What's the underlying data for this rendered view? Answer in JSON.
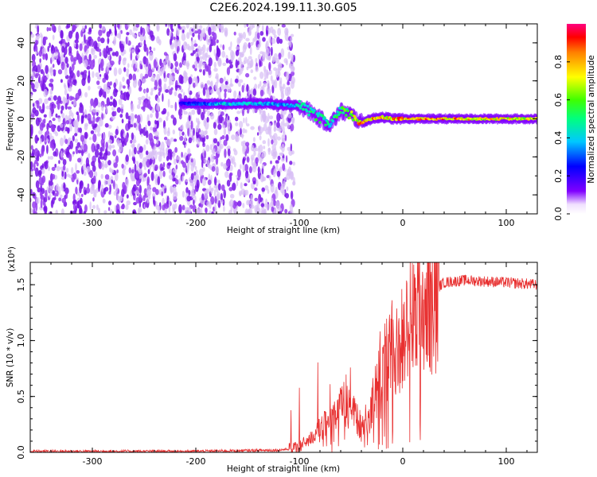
{
  "figure": {
    "title": "C2E6.2024.199.11.30.G05"
  },
  "chart_data": [
    {
      "type": "heatmap",
      "xlabel": "Height of straight line (km)",
      "ylabel": "Frequency (Hz)",
      "xlim": [
        -360,
        130
      ],
      "ylim": [
        -50,
        50
      ],
      "xticks": [
        "-300",
        "-200",
        "-100",
        "0",
        "100"
      ],
      "yticks": [
        "-40",
        "-20",
        "0",
        "20",
        "40"
      ],
      "colorbar": {
        "label": "Normalized spectral amplitude",
        "range": [
          0,
          1
        ],
        "ticks": [
          "0.0",
          "0.2",
          "0.4",
          "0.6",
          "0.8"
        ]
      },
      "signal_track": [
        {
          "x": -215,
          "y": 8,
          "amp": 0.25
        },
        {
          "x": -190,
          "y": 8,
          "amp": 0.35
        },
        {
          "x": -170,
          "y": 8,
          "amp": 0.45
        },
        {
          "x": -150,
          "y": 8,
          "amp": 0.45
        },
        {
          "x": -130,
          "y": 8,
          "amp": 0.4
        },
        {
          "x": -110,
          "y": 7,
          "amp": 0.4
        },
        {
          "x": -100,
          "y": 7,
          "amp": 0.45
        },
        {
          "x": -90,
          "y": 4,
          "amp": 0.55
        },
        {
          "x": -80,
          "y": 0,
          "amp": 0.55
        },
        {
          "x": -70,
          "y": -3,
          "amp": 0.5
        },
        {
          "x": -60,
          "y": 4,
          "amp": 0.6
        },
        {
          "x": -50,
          "y": 2,
          "amp": 0.7
        },
        {
          "x": -40,
          "y": -2,
          "amp": 0.9
        },
        {
          "x": -30,
          "y": 0,
          "amp": 0.9
        },
        {
          "x": -20,
          "y": 1,
          "amp": 0.85
        },
        {
          "x": -10,
          "y": 0,
          "amp": 0.9
        },
        {
          "x": 0,
          "y": 0,
          "amp": 0.95
        },
        {
          "x": 20,
          "y": 0,
          "amp": 0.92
        },
        {
          "x": 40,
          "y": 0,
          "amp": 0.9
        },
        {
          "x": 60,
          "y": 0,
          "amp": 0.88
        },
        {
          "x": 80,
          "y": 0,
          "amp": 0.85
        },
        {
          "x": 100,
          "y": 0,
          "amp": 0.8
        },
        {
          "x": 130,
          "y": 0,
          "amp": 0.8
        }
      ]
    },
    {
      "type": "line",
      "xlabel": "Height of straight line (km)",
      "ylabel": "SNR (10 * v/v)",
      "y_multiplier": "(x10⁴)",
      "xlim": [
        -360,
        130
      ],
      "ylim": [
        0,
        1.7
      ],
      "xticks": [
        "-300",
        "-200",
        "-100",
        "0",
        "100"
      ],
      "yticks": [
        "0.0",
        "0.5",
        "1.0",
        "1.5"
      ],
      "color": "#e83030",
      "series": [
        {
          "x": [
            -360,
            -300,
            -200,
            -120,
            -110,
            -100,
            -90,
            -80,
            -70,
            -60,
            -50,
            -40,
            -30,
            -20,
            -10,
            0,
            10,
            20,
            30,
            40,
            60,
            80,
            100,
            130
          ],
          "y": [
            0.01,
            0.01,
            0.01,
            0.02,
            0.03,
            0.05,
            0.12,
            0.2,
            0.3,
            0.4,
            0.5,
            0.2,
            0.4,
            0.7,
            0.9,
            1.0,
            1.15,
            1.35,
            1.45,
            1.52,
            1.54,
            1.53,
            1.52,
            1.5
          ]
        }
      ]
    }
  ]
}
